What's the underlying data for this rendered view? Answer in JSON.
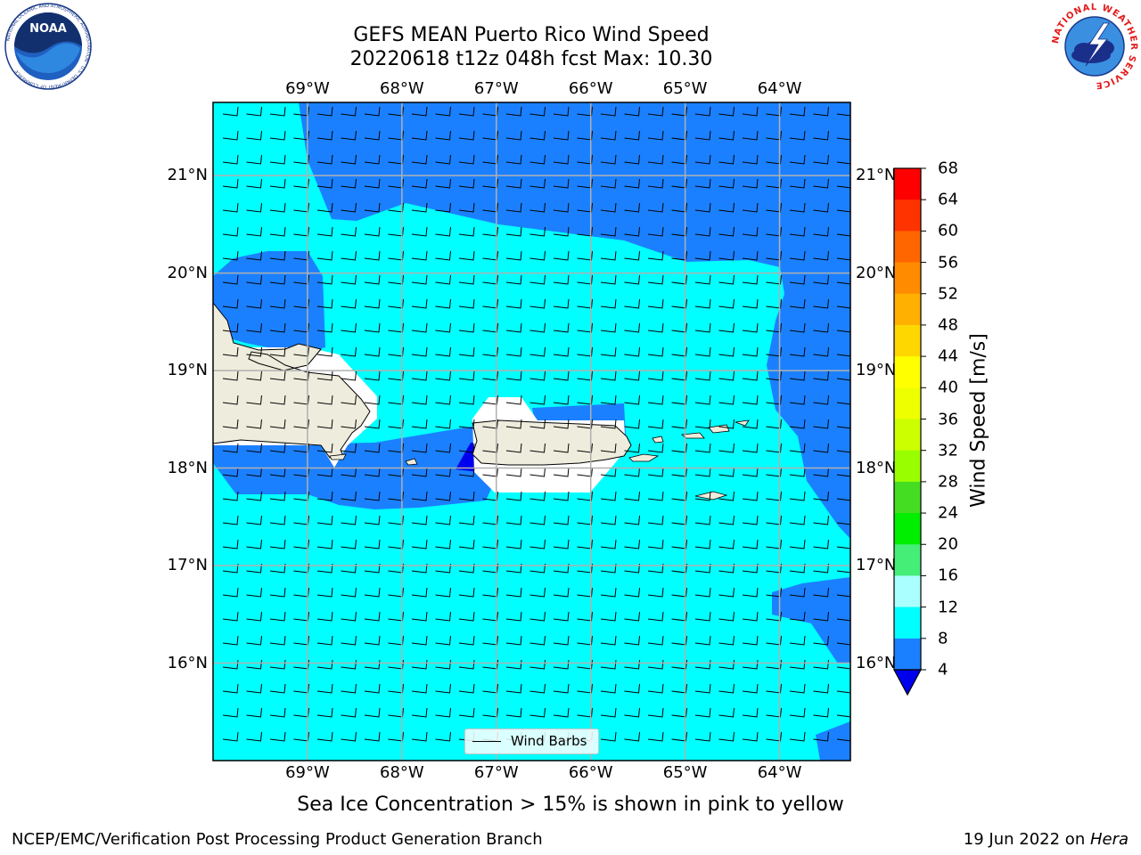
{
  "header": {
    "title_line1": "GEFS MEAN Puerto Rico Wind Speed",
    "title_line2": "20220618 t12z 048h fcst   Max: 10.30"
  },
  "logos": {
    "noaa_text": "NOAA",
    "noaa_ring_text": "NATIONAL OCEANIC AND ATMOSPHERIC ADMINISTRATION · U.S. DEPARTMENT OF COMMERCE",
    "nws_ring_text": "NATIONAL WEATHER SERVICE"
  },
  "map": {
    "lon_range": [
      -70.0,
      -63.25
    ],
    "lat_range": [
      15.0,
      21.75
    ],
    "lon_ticks": [
      "69°W",
      "68°W",
      "67°W",
      "66°W",
      "65°W",
      "64°W"
    ],
    "lat_ticks": [
      "21°N",
      "20°N",
      "19°N",
      "18°N",
      "17°N",
      "16°N"
    ],
    "grid": true,
    "colors": {
      "land": "#eeecdc",
      "no_data": "#ffffff",
      "speed_4_8": "#1b80ff",
      "speed_8_12": "#00ffff",
      "speed_below_4": "#0000ee"
    }
  },
  "colorbar": {
    "label": "Wind Speed [m/s]",
    "ticks": [
      "68",
      "64",
      "60",
      "56",
      "52",
      "48",
      "44",
      "40",
      "36",
      "32",
      "28",
      "24",
      "20",
      "16",
      "12",
      "8",
      "4"
    ],
    "colors": [
      "#ff0000",
      "#ff3300",
      "#ff6600",
      "#ff8c00",
      "#ffb000",
      "#ffd700",
      "#ffff00",
      "#eeff00",
      "#ccff00",
      "#99ff00",
      "#44dd22",
      "#00ee00",
      "#44ee77",
      "#aaffff",
      "#55ffff",
      "#00ffff",
      "#1b80ff"
    ],
    "under_color": "#0000ee"
  },
  "legend": {
    "label": "Wind Barbs"
  },
  "caption": "Sea Ice Concentration > 15% is shown in pink to yellow",
  "footer": {
    "left": "NCEP/EMC/Verification Post Processing Product Generation Branch",
    "right_prefix": "19 Jun 2022 on ",
    "right_host": "Hera"
  }
}
